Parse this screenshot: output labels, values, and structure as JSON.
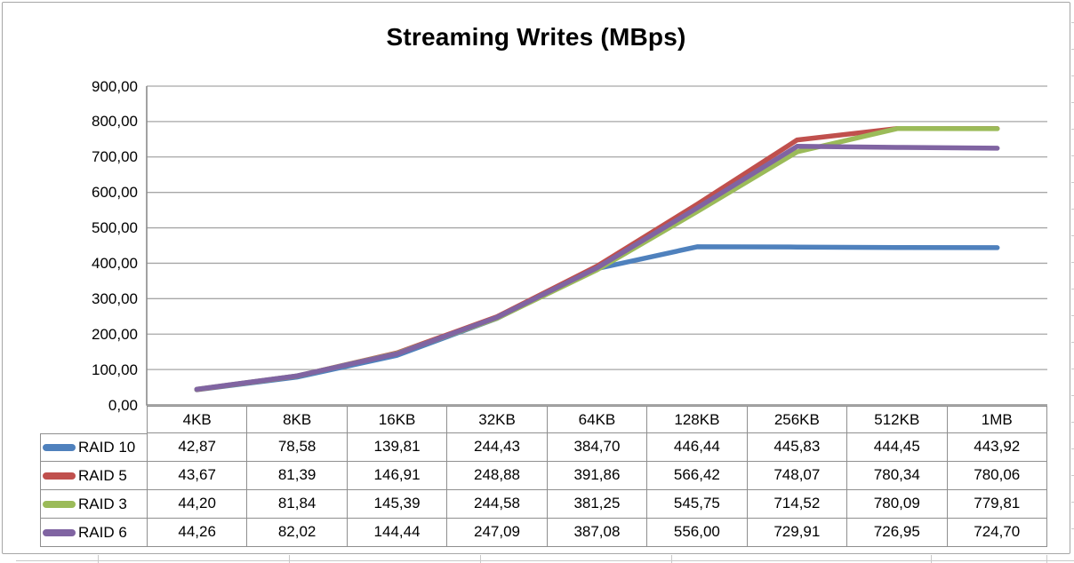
{
  "chart_data": {
    "type": "line",
    "title": "Streaming Writes (MBps)",
    "categories": [
      "4KB",
      "8KB",
      "16KB",
      "32KB",
      "64KB",
      "128KB",
      "256KB",
      "512KB",
      "1MB"
    ],
    "series": [
      {
        "name": "RAID 10",
        "color": "#4F81BD",
        "values": [
          42.87,
          78.58,
          139.81,
          244.43,
          384.7,
          446.44,
          445.83,
          444.45,
          443.92
        ]
      },
      {
        "name": "RAID 5",
        "color": "#C0504D",
        "values": [
          43.67,
          81.39,
          146.91,
          248.88,
          391.86,
          566.42,
          748.07,
          780.34,
          780.06
        ]
      },
      {
        "name": "RAID 3",
        "color": "#9BBB59",
        "values": [
          44.2,
          81.84,
          145.39,
          244.58,
          381.25,
          545.75,
          714.52,
          780.09,
          779.81
        ]
      },
      {
        "name": "RAID 6",
        "color": "#8064A2",
        "values": [
          44.26,
          82.02,
          144.44,
          247.09,
          387.08,
          556.0,
          729.91,
          726.95,
          724.7
        ]
      }
    ],
    "xlabel": "",
    "ylabel": "",
    "ylim": [
      0,
      900
    ],
    "y_tick_step": 100,
    "y_tick_labels": [
      "0,00",
      "100,00",
      "200,00",
      "300,00",
      "400,00",
      "500,00",
      "600,00",
      "700,00",
      "800,00",
      "900,00"
    ],
    "number_format": "comma-decimal-2-places",
    "grid": "horizontal-on",
    "legend_position": "data-table-left-column",
    "colors": {
      "gridline": "#A6A6A6",
      "axis": "#8A8A8A",
      "table_border": "#8F8F8F",
      "frame_border": "#A6A6A6",
      "title_text": "#000000",
      "background": "#FFFFFF"
    }
  }
}
